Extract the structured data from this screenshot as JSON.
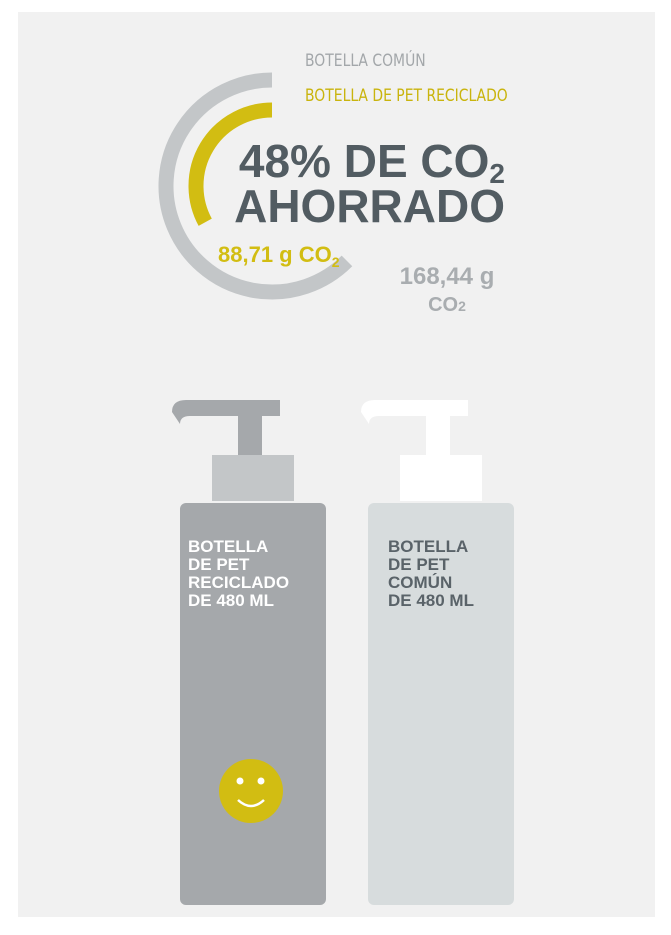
{
  "legend": {
    "common": "BOTELLA COMÚN",
    "recycled": "BOTELLA DE PET RECICLADO"
  },
  "headline": {
    "line1": "48% DE CO",
    "line1_sub": "2",
    "line2": "AHORRADO"
  },
  "gauge": {
    "series": [
      {
        "value": 168.44,
        "label": "168,44 g",
        "unit": "CO",
        "unit_sub": "2",
        "color": "#c3c6c8"
      },
      {
        "value": 88.71,
        "label": "88,71 g CO",
        "unit_sub": "2",
        "color": "#d2bd12"
      }
    ]
  },
  "bottles": [
    {
      "lines": [
        "BOTELLA",
        "DE PET",
        "RECICLADO",
        "DE 480 ML"
      ]
    },
    {
      "lines": [
        "BOTELLA",
        "DE PET",
        "COMÚN",
        "DE 480 ML"
      ]
    }
  ]
}
